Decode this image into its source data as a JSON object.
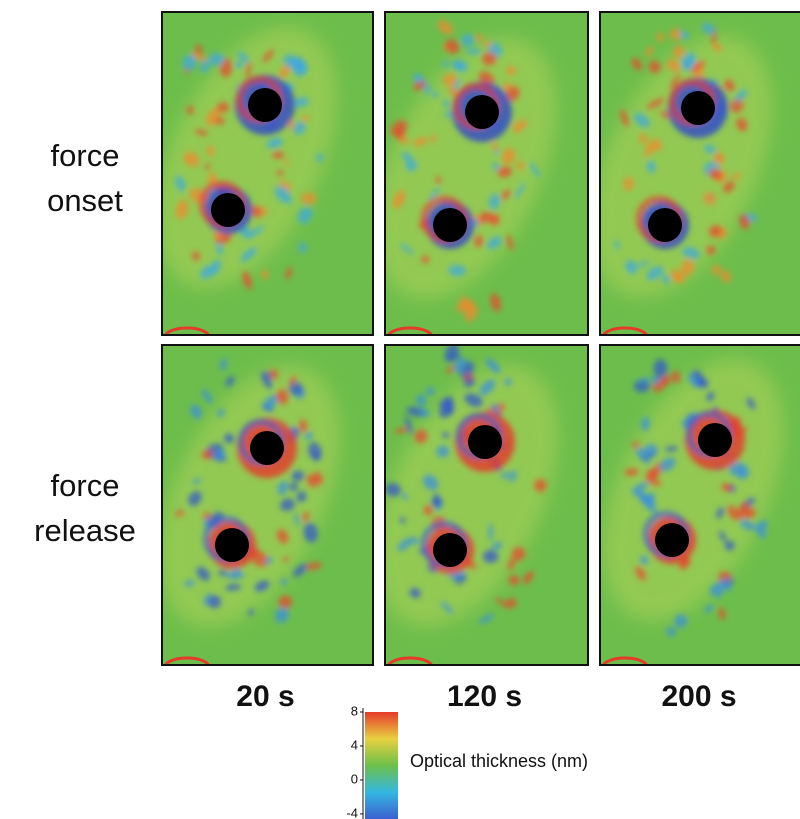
{
  "rows": [
    {
      "label": [
        "force",
        "onset"
      ]
    },
    {
      "label": [
        "force",
        "release"
      ]
    }
  ],
  "columns": [
    "20 s",
    "120 s",
    "200 s"
  ],
  "colorbar": {
    "label": "Optical thickness (nm)",
    "ticks": [
      8,
      4,
      0,
      -4
    ],
    "lim": [
      -4.6,
      8
    ],
    "colors": [
      "#3a5fd0",
      "#35b7e0",
      "#6cc04a",
      "#e8d040",
      "#e63a2a"
    ]
  }
}
